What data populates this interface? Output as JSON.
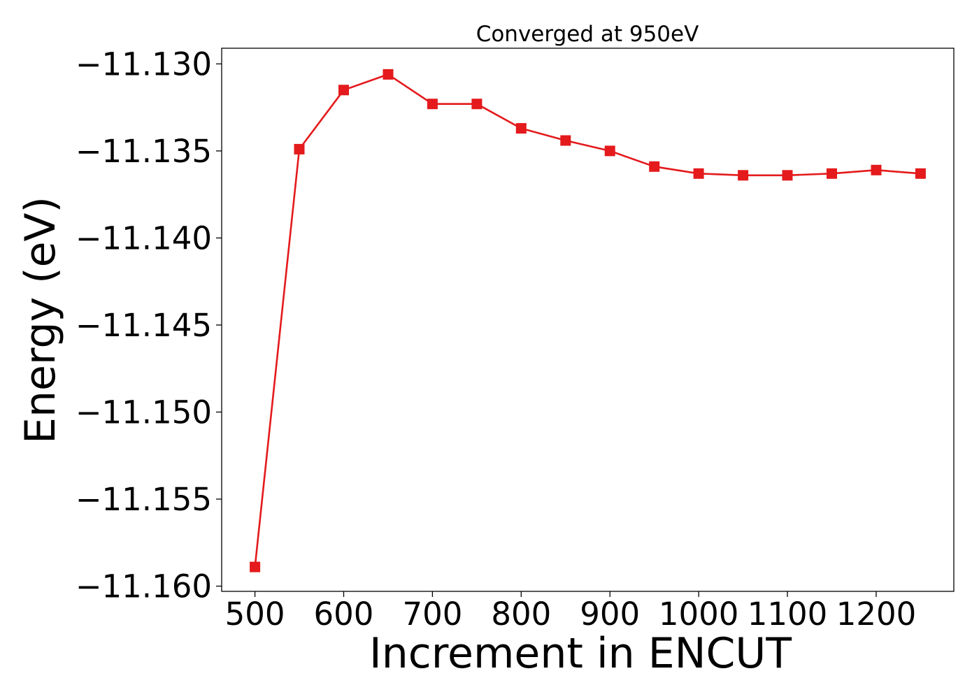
{
  "chart_data": {
    "type": "line",
    "title": "Converged at 950eV",
    "xlabel": "Increment in ENCUT",
    "ylabel": "Energy (eV)",
    "x": [
      500,
      550,
      600,
      650,
      700,
      750,
      800,
      850,
      900,
      950,
      1000,
      1050,
      1100,
      1150,
      1200,
      1250
    ],
    "series": [
      {
        "values": [
          -11.1589,
          -11.1349,
          -11.1315,
          -11.1306,
          -11.1323,
          -11.1323,
          -11.1337,
          -11.1344,
          -11.135,
          -11.1359,
          -11.1363,
          -11.1364,
          -11.1364,
          -11.1363,
          -11.1361,
          -11.1363
        ],
        "color": "#e41a1c",
        "marker": "square"
      }
    ],
    "xlim": [
      462.5,
      1287.5
    ],
    "ylim": [
      -11.1603,
      -11.1291
    ],
    "xticks": [
      500,
      600,
      700,
      800,
      900,
      1000,
      1100,
      1200
    ],
    "xtick_labels": [
      "500",
      "600",
      "700",
      "800",
      "900",
      "1000",
      "1100",
      "1200"
    ],
    "yticks": [
      -11.13,
      -11.135,
      -11.14,
      -11.145,
      -11.15,
      -11.155,
      -11.16
    ],
    "ytick_labels": [
      "−11.130",
      "−11.135",
      "−11.140",
      "−11.145",
      "−11.150",
      "−11.155",
      "−11.160"
    ],
    "grid": false,
    "legend": "none"
  }
}
